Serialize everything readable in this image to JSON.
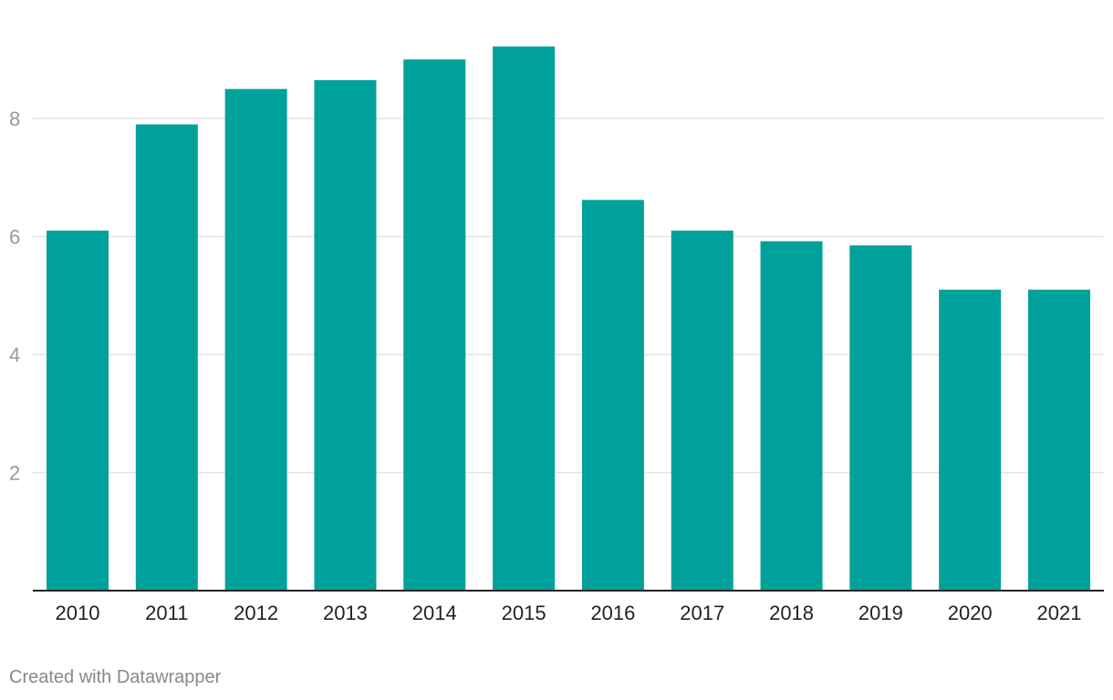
{
  "chart_data": {
    "type": "bar",
    "categories": [
      "2010",
      "2011",
      "2012",
      "2013",
      "2014",
      "2015",
      "2016",
      "2017",
      "2018",
      "2019",
      "2020",
      "2021"
    ],
    "values": [
      6.1,
      7.9,
      8.5,
      8.65,
      9.0,
      9.22,
      6.62,
      6.1,
      5.92,
      5.85,
      5.1,
      5.1
    ],
    "title": "",
    "xlabel": "",
    "ylabel": "",
    "ylim": [
      0,
      9.5
    ],
    "yticks": [
      2,
      4,
      6,
      8
    ],
    "grid": true,
    "colors": {
      "bar": "#00a19a",
      "grid": "#e3e3e3",
      "axis": "#222222"
    }
  },
  "footer": {
    "credit": "Created with Datawrapper"
  }
}
